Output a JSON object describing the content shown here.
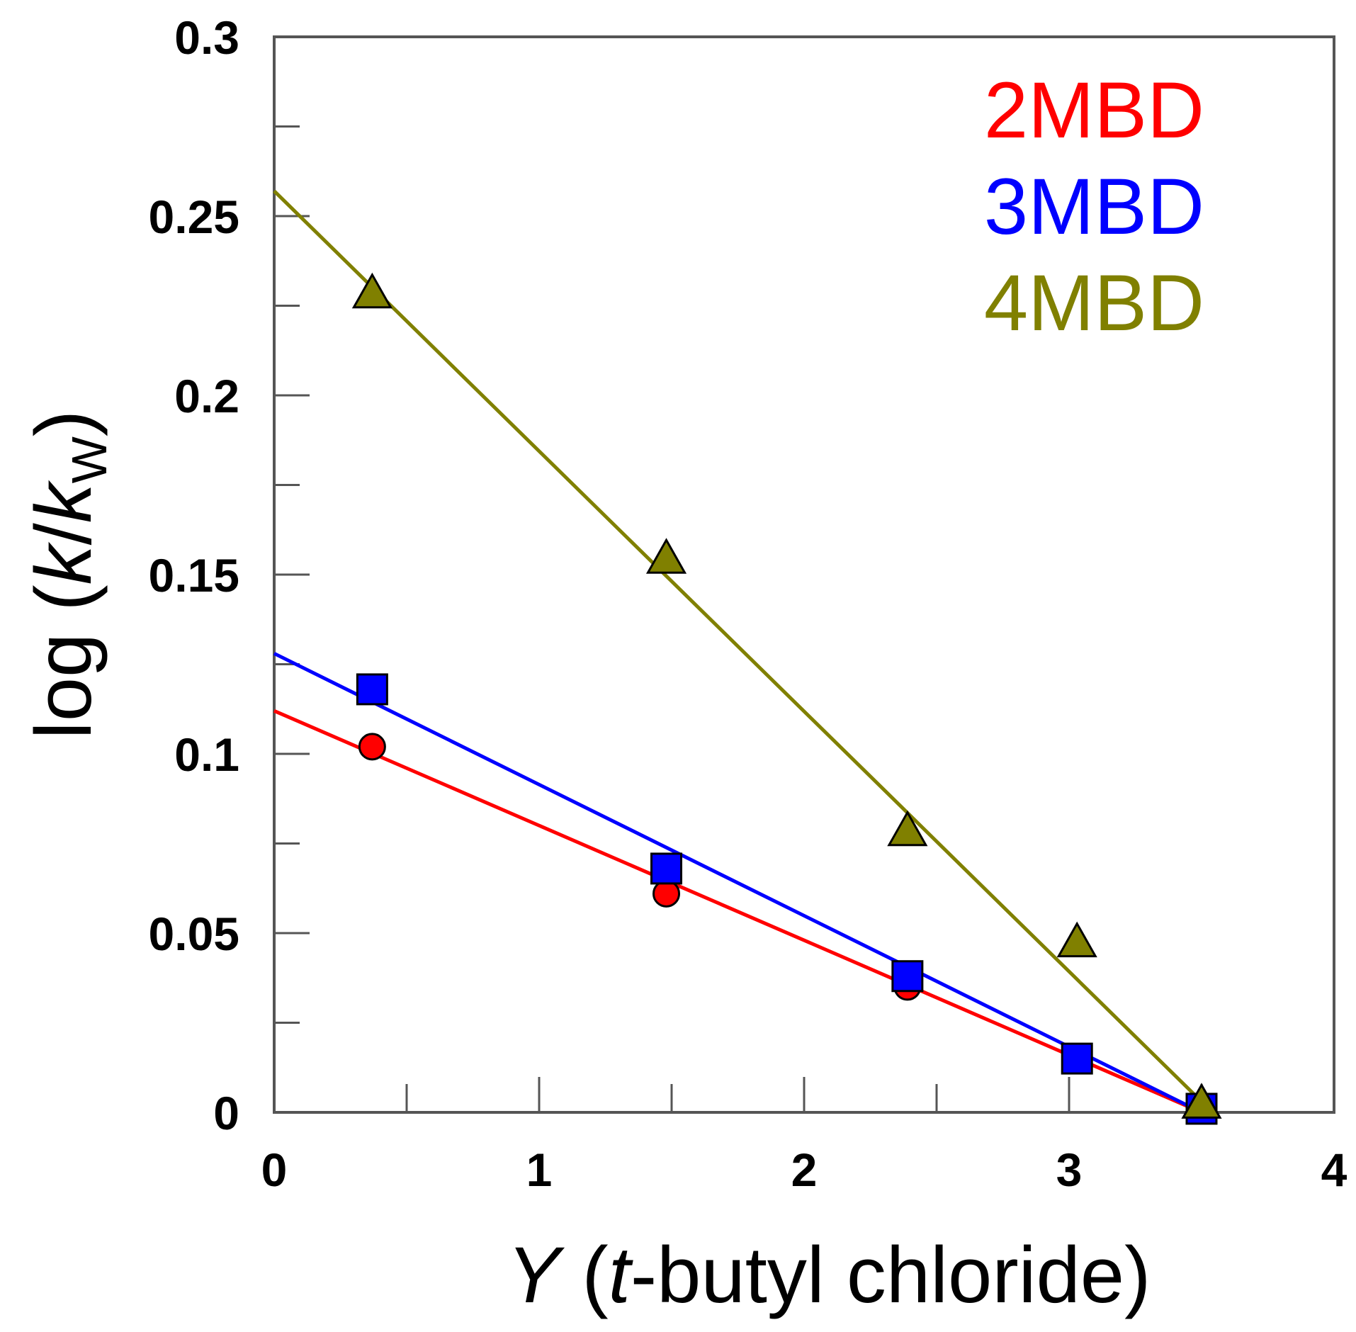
{
  "chart_data": {
    "type": "scatter",
    "title": "",
    "xlabel": {
      "italic": "Y",
      "pre": " (",
      "italic2": "t",
      "post": "-butyl chloride)"
    },
    "ylabel": {
      "pre": "log (",
      "k": "k",
      "slash": "/",
      "kw": "k",
      "sub": "W",
      "post": ")"
    },
    "xlim": [
      0,
      4
    ],
    "ylim": [
      0,
      0.3
    ],
    "xticks": [
      "0",
      "1",
      "2",
      "3",
      "4"
    ],
    "yticks": [
      "0",
      "0.05",
      "0.1",
      "0.15",
      "0.2",
      "0.25",
      "0.3"
    ],
    "grid": false,
    "legend_position": "top-right",
    "series": [
      {
        "name": "2MBD",
        "color": "#ff0000",
        "marker": "circle",
        "points": [
          [
            0.37,
            0.102
          ],
          [
            1.48,
            0.061
          ],
          [
            2.39,
            0.035
          ],
          [
            3.03,
            0.015
          ],
          [
            3.5,
            0.001
          ]
        ],
        "fit": [
          [
            0,
            0.112
          ],
          [
            3.5,
            0.0
          ]
        ]
      },
      {
        "name": "3MBD",
        "color": "#0000ff",
        "marker": "square",
        "points": [
          [
            0.37,
            0.118
          ],
          [
            1.48,
            0.068
          ],
          [
            2.39,
            0.038
          ],
          [
            3.03,
            0.015
          ],
          [
            3.5,
            0.001
          ]
        ],
        "fit": [
          [
            0,
            0.128
          ],
          [
            3.5,
            0.0
          ]
        ]
      },
      {
        "name": "4MBD",
        "color": "#808000",
        "marker": "triangle",
        "points": [
          [
            0.37,
            0.228
          ],
          [
            1.48,
            0.154
          ],
          [
            2.39,
            0.078
          ],
          [
            3.03,
            0.047
          ],
          [
            3.5,
            0.002
          ]
        ],
        "fit": [
          [
            0,
            0.257
          ],
          [
            3.5,
            0.003
          ]
        ]
      }
    ]
  }
}
